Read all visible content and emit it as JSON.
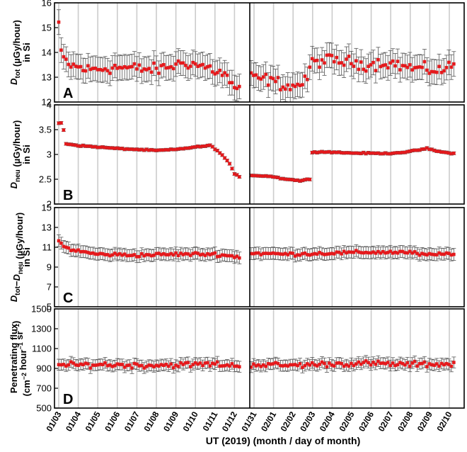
{
  "figure": {
    "xlabel": "UT (2019) (month / day of month)",
    "x_tick_labels": [
      "01/03",
      "01/04",
      "01/05",
      "01/06",
      "01/07",
      "01/08",
      "01/09",
      "01/10",
      "01/11",
      "01/12",
      "01/31",
      "02/01",
      "02/02",
      "02/03",
      "02/04",
      "02/05",
      "02/06",
      "02/07",
      "02/08",
      "02/09",
      "02/10"
    ],
    "colors": {
      "marker": "#e4191c",
      "errorbar": "#555555",
      "gridline": "#cccccc",
      "frame": "#000000"
    }
  },
  "chart_data": [
    {
      "type": "scatter",
      "panel_letter": "A",
      "ylabel": [
        [
          {
            "t": "D",
            "s": "i"
          },
          {
            "t": "tot",
            "s": "sub"
          },
          {
            "t": " (µGy/hour)",
            "s": "n"
          }
        ],
        [
          {
            "t": "in Si",
            "s": "n"
          }
        ]
      ],
      "ylim": [
        12,
        16
      ],
      "yticks": [
        12,
        13,
        14,
        15,
        16
      ],
      "errorbar": 0.5,
      "segments": [
        {
          "x_start": "01/03",
          "x_end": "01/12",
          "y_anchors": [
            [
              0,
              15.2
            ],
            [
              0.12,
              13.9
            ],
            [
              0.5,
              13.5
            ],
            [
              1.5,
              13.3
            ],
            [
              3,
              13.4
            ],
            [
              5,
              13.3
            ],
            [
              6.5,
              13.6
            ],
            [
              7.6,
              13.4
            ],
            [
              8.5,
              13.1
            ],
            [
              9.0,
              12.6
            ],
            [
              9.3,
              12.5
            ]
          ],
          "noise": 0.35
        },
        {
          "x_start": "01/31",
          "x_end": "02/10",
          "y_anchors": [
            [
              0,
              13.0
            ],
            [
              0.9,
              12.9
            ],
            [
              2,
              12.6
            ],
            [
              2.8,
              12.8
            ],
            [
              3.1,
              13.6
            ],
            [
              4,
              13.7
            ],
            [
              5,
              13.6
            ],
            [
              6,
              13.5
            ],
            [
              7,
              13.6
            ],
            [
              8,
              13.4
            ],
            [
              9,
              13.3
            ],
            [
              10,
              13.3
            ],
            [
              10.4,
              13.6
            ]
          ],
          "noise": 0.35
        }
      ]
    },
    {
      "type": "scatter",
      "panel_letter": "B",
      "ylabel": [
        [
          {
            "t": "D",
            "s": "i"
          },
          {
            "t": "neu",
            "s": "sub"
          },
          {
            "t": " (µGy/hour)",
            "s": "n"
          }
        ],
        [
          {
            "t": "in Si",
            "s": "n"
          }
        ]
      ],
      "ylim": [
        2,
        4
      ],
      "yticks": [
        2,
        2.5,
        3,
        3.5,
        4
      ],
      "yticklabels": [
        "2",
        "2.5",
        "3",
        "3.5",
        "4"
      ],
      "errorbar": 0.03,
      "segments": [
        {
          "x_start": "01/03",
          "x_end": "01/12",
          "y_anchors": [
            [
              0,
              3.63
            ],
            [
              0.2,
              3.63
            ],
            [
              0.35,
              3.22
            ],
            [
              1,
              3.18
            ],
            [
              2,
              3.15
            ],
            [
              3,
              3.12
            ],
            [
              4,
              3.1
            ],
            [
              5,
              3.08
            ],
            [
              6,
              3.1
            ],
            [
              7,
              3.15
            ],
            [
              7.8,
              3.18
            ],
            [
              8.2,
              3.05
            ],
            [
              8.7,
              2.85
            ],
            [
              9.0,
              2.6
            ],
            [
              9.3,
              2.55
            ]
          ],
          "noise": 0.015
        },
        {
          "x_start": "01/31",
          "x_end": "02/10",
          "y_anchors": [
            [
              0,
              2.58
            ],
            [
              1,
              2.56
            ],
            [
              1.5,
              2.52
            ],
            [
              2.5,
              2.47
            ],
            [
              3,
              2.5
            ],
            [
              3.1,
              3.05
            ],
            [
              4,
              3.05
            ],
            [
              5,
              3.03
            ],
            [
              7,
              3.02
            ],
            [
              8,
              3.05
            ],
            [
              9,
              3.12
            ],
            [
              9.7,
              3.05
            ],
            [
              10.4,
              3.02
            ]
          ],
          "noise": 0.015
        }
      ]
    },
    {
      "type": "scatter",
      "panel_letter": "C",
      "ylabel": [
        [
          {
            "t": "D",
            "s": "i"
          },
          {
            "t": "tot",
            "s": "sub"
          },
          {
            "t": "−",
            "s": "n"
          },
          {
            "t": "D",
            "s": "i"
          },
          {
            "t": "neu",
            "s": "sub"
          },
          {
            "t": " (µGy/hour)",
            "s": "n"
          }
        ],
        [
          {
            "t": "in Si",
            "s": "n"
          }
        ]
      ],
      "ylim": [
        5,
        15
      ],
      "yticks": [
        5,
        7,
        9,
        11,
        13,
        15
      ],
      "errorbar": 0.6,
      "segments": [
        {
          "x_start": "01/03",
          "x_end": "01/12",
          "y_anchors": [
            [
              0,
              11.6
            ],
            [
              0.3,
              11.0
            ],
            [
              1,
              10.6
            ],
            [
              2,
              10.3
            ],
            [
              4,
              10.2
            ],
            [
              6,
              10.3
            ],
            [
              8,
              10.3
            ],
            [
              9.3,
              10.0
            ]
          ],
          "noise": 0.25
        },
        {
          "x_start": "01/31",
          "x_end": "02/10",
          "y_anchors": [
            [
              0,
              10.4
            ],
            [
              2,
              10.3
            ],
            [
              4,
              10.4
            ],
            [
              6,
              10.5
            ],
            [
              8,
              10.5
            ],
            [
              9,
              10.2
            ],
            [
              10.4,
              10.4
            ]
          ],
          "noise": 0.25
        }
      ]
    },
    {
      "type": "scatter",
      "panel_letter": "D",
      "ylabel": [
        [
          {
            "t": "Penetrating flux",
            "s": "n"
          }
        ],
        [
          {
            "t": "(cm",
            "s": "n"
          },
          {
            "t": "−2",
            "s": "sup"
          },
          {
            "t": " hour",
            "s": "n"
          },
          {
            "t": "−1",
            "s": "sup"
          },
          {
            "t": " sr",
            "s": "n"
          },
          {
            "t": "−1",
            "s": "sup"
          },
          {
            "t": ")",
            "s": "n"
          }
        ]
      ],
      "ylim": [
        500,
        1500
      ],
      "yticks": [
        500,
        700,
        900,
        1100,
        1300,
        1500
      ],
      "errorbar": 55,
      "segments": [
        {
          "x_start": "01/03",
          "x_end": "01/12",
          "y_anchors": [
            [
              0,
              930
            ],
            [
              2,
              940
            ],
            [
              4,
              930
            ],
            [
              6,
              935
            ],
            [
              8,
              945
            ],
            [
              9.3,
              920
            ]
          ],
          "noise": 40
        },
        {
          "x_start": "01/31",
          "x_end": "02/10",
          "y_anchors": [
            [
              0,
              940
            ],
            [
              2,
              930
            ],
            [
              4,
              945
            ],
            [
              6,
              950
            ],
            [
              8,
              940
            ],
            [
              10.4,
              945
            ]
          ],
          "noise": 40
        }
      ]
    }
  ]
}
